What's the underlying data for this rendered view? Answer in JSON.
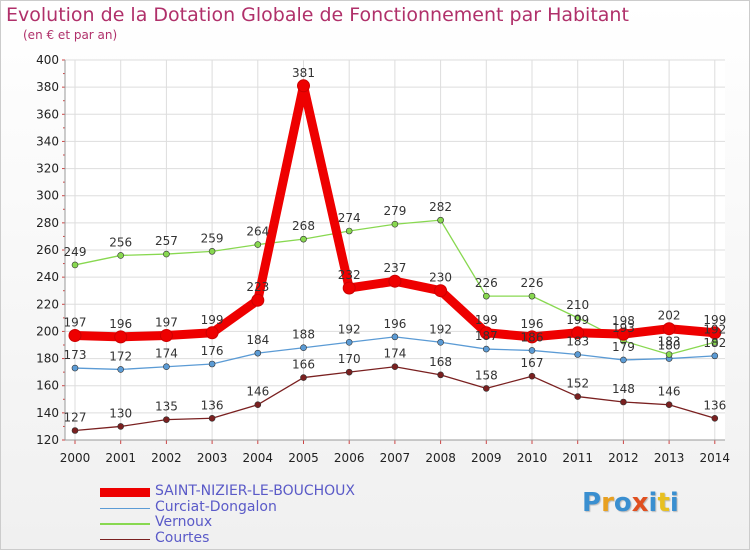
{
  "title": "Evolution de la Dotation Globale de Fonctionnement par Habitant",
  "subtitle": "(en € et par an)",
  "logo": {
    "text": "Proxiti",
    "colors": [
      "#3a8fd0",
      "#e8a020",
      "#3a8fd0",
      "#e05020",
      "#3a8fd0",
      "#e8c020",
      "#3a8fd0"
    ]
  },
  "chart_data": {
    "type": "line",
    "title": "Evolution de la Dotation Globale de Fonctionnement par Habitant",
    "subtitle": "(en € et par an)",
    "xlabel": "",
    "ylabel": "",
    "ylim": [
      120,
      400
    ],
    "yticks": [
      120,
      140,
      160,
      180,
      200,
      220,
      240,
      260,
      280,
      300,
      320,
      340,
      360,
      380,
      400
    ],
    "categories": [
      "2000",
      "2001",
      "2002",
      "2003",
      "2004",
      "2005",
      "2006",
      "2007",
      "2008",
      "2009",
      "2010",
      "2011",
      "2012",
      "2013",
      "2014"
    ],
    "grid": true,
    "legend_position": "bottom-left",
    "series": [
      {
        "name": "SAINT-NIZIER-LE-BOUCHOUX",
        "color": "#ee0000",
        "thick": true,
        "values": [
          197,
          196,
          197,
          199,
          223,
          381,
          232,
          237,
          230,
          199,
          196,
          199,
          198,
          202,
          199
        ],
        "labels": [
          "197",
          "196",
          "197",
          "199",
          "223",
          "381",
          "232",
          "237",
          "230",
          "199",
          "196",
          "199",
          "198",
          "202",
          "199"
        ]
      },
      {
        "name": "Curciat-Dongalon",
        "color": "#5b9bd5",
        "thick": false,
        "values": [
          173,
          172,
          174,
          176,
          184,
          188,
          192,
          196,
          192,
          187,
          186,
          183,
          179,
          180,
          182
        ],
        "labels": [
          "173",
          "172",
          "174",
          "176",
          "184",
          "188",
          "192",
          "196",
          "192",
          "187",
          "186",
          "183",
          "179",
          "180",
          "182"
        ]
      },
      {
        "name": "Vernoux",
        "color": "#88d850",
        "thick": false,
        "values": [
          249,
          256,
          257,
          259,
          264,
          268,
          274,
          279,
          282,
          226,
          226,
          210,
          193,
          183,
          192
        ],
        "labels": [
          "249",
          "256",
          "257",
          "259",
          "264",
          "268",
          "274",
          "279",
          "282",
          "226",
          "226",
          "210",
          "193",
          "183",
          "192"
        ]
      },
      {
        "name": "Courtes",
        "color": "#7a2020",
        "thick": false,
        "values": [
          127,
          130,
          135,
          136,
          146,
          166,
          170,
          174,
          168,
          158,
          167,
          152,
          148,
          146,
          136
        ],
        "labels": [
          "127",
          "130",
          "135",
          "136",
          "146",
          "166",
          "170",
          "174",
          "168",
          "158",
          "167",
          "152",
          "148",
          "146",
          "136"
        ]
      }
    ]
  }
}
